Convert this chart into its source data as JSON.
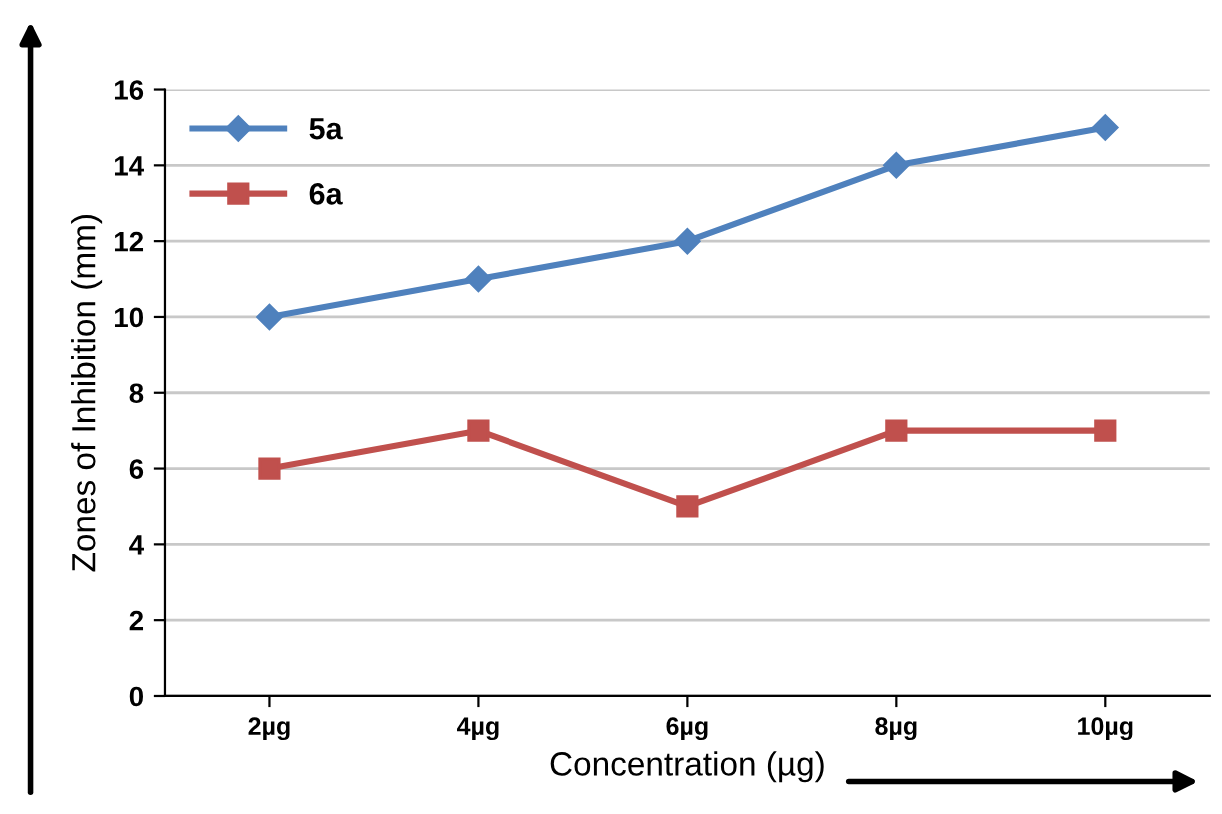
{
  "chart_data": {
    "type": "line",
    "xlabel": "Concentration (µg)",
    "ylabel": "Zones of Inhibition (mm)",
    "categories": [
      "2µg",
      "4µg",
      "6µg",
      "8µg",
      "10µg"
    ],
    "series": [
      {
        "name": "5a",
        "color": "#4f81bd",
        "marker": "diamond",
        "values": [
          10,
          11,
          12,
          14,
          15
        ]
      },
      {
        "name": "6a",
        "color": "#c0504d",
        "marker": "square",
        "values": [
          6,
          7,
          5,
          7,
          7
        ]
      }
    ],
    "ylim": [
      0,
      16
    ],
    "yticks": [
      0,
      2,
      4,
      6,
      8,
      10,
      12,
      14,
      16
    ],
    "grid": "y",
    "legend": "top left",
    "line_style": "solid"
  }
}
